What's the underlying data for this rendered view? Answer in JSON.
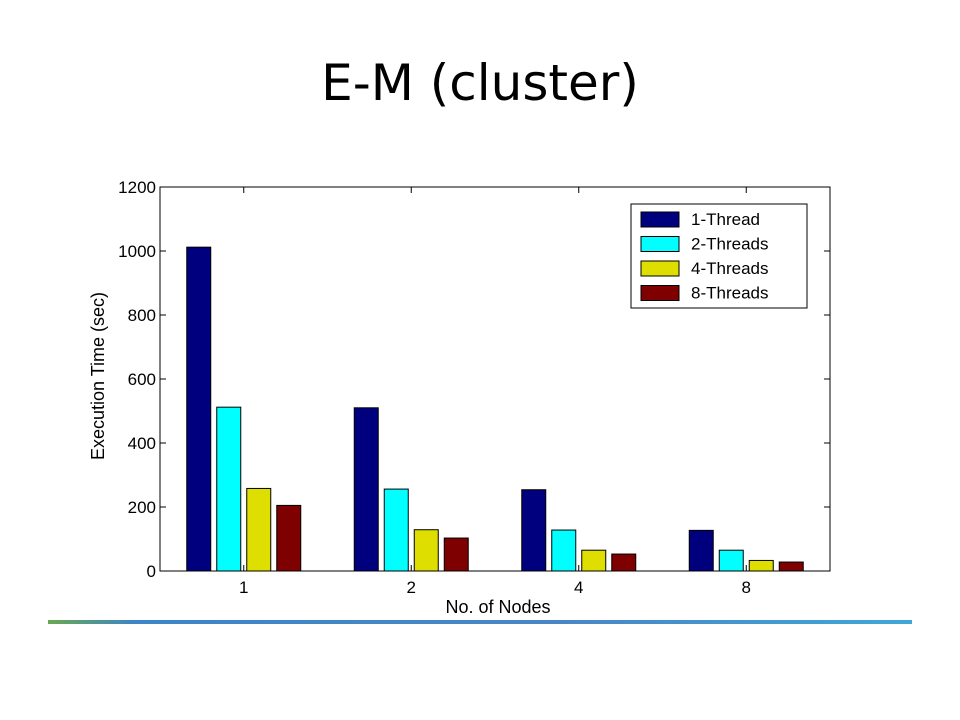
{
  "slide": {
    "title": "E-M (cluster)"
  },
  "colors": {
    "series": [
      "#00007f",
      "#00ffff",
      "#dede00",
      "#7f0000"
    ]
  },
  "chart_data": {
    "type": "bar",
    "categories": [
      "1",
      "2",
      "4",
      "8"
    ],
    "series": [
      {
        "name": "1-Thread",
        "values": [
          1012,
          510,
          254,
          127
        ]
      },
      {
        "name": "2-Threads",
        "values": [
          512,
          256,
          128,
          65
        ]
      },
      {
        "name": "4-Threads",
        "values": [
          258,
          129,
          65,
          33
        ]
      },
      {
        "name": "8-Threads",
        "values": [
          205,
          103,
          53,
          28
        ]
      }
    ],
    "xlabel": "No. of Nodes",
    "ylabel": "Execution Time (sec)",
    "ylim": [
      0,
      1200
    ],
    "yticks": [
      "0",
      "200",
      "400",
      "600",
      "800",
      "1000",
      "1200"
    ],
    "grid": false,
    "legend": "top-right"
  }
}
